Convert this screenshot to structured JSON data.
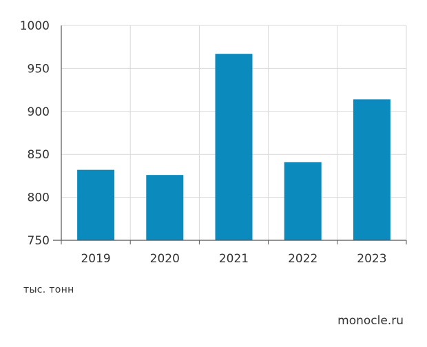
{
  "chart_data": {
    "type": "bar",
    "categories": [
      "2019",
      "2020",
      "2021",
      "2022",
      "2023"
    ],
    "values": [
      832,
      826,
      967,
      841,
      914
    ],
    "ylim": [
      750,
      1000
    ],
    "yticks": [
      750,
      800,
      850,
      900,
      950,
      1000
    ],
    "grid": true,
    "colors": {
      "bar": "#0a8abd",
      "grid": "#d9d9d9",
      "axis": "#555555"
    }
  },
  "unit_note": "тыс. тонн",
  "source": "monocle.ru"
}
